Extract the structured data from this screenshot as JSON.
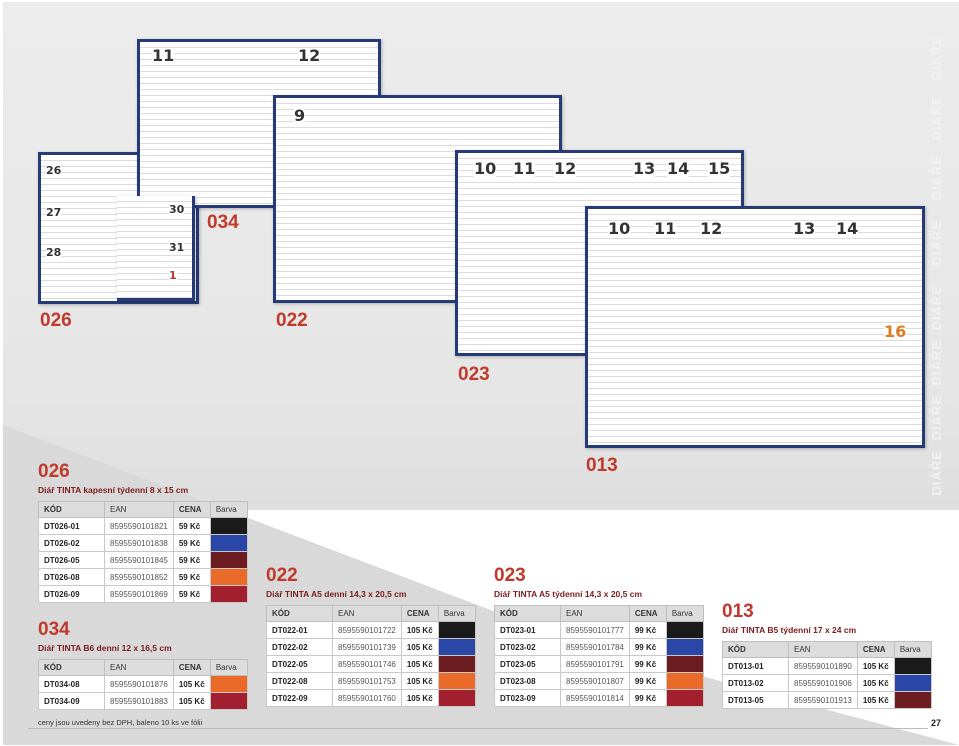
{
  "watermark": "DIÁŘE",
  "watermark_repeat": [
    "DIÁŘE",
    "DIÁŘE",
    "DIÁŘE",
    "DIÁŘE",
    "DIÁŘE",
    "DIÁŘE",
    "DIÁŘE",
    "DIÁŘE"
  ],
  "image_codes": [
    "034",
    "026",
    "022",
    "023",
    "013"
  ],
  "books": {
    "b034": {
      "left": "11",
      "right": "12",
      "d1": "30",
      "d2": "31",
      "d3": "1"
    },
    "b026": {
      "d1": "26",
      "d2": "27",
      "d3": "28"
    },
    "b022": {
      "left": "9"
    },
    "b023": {
      "a": "10",
      "b": "11",
      "c": "12",
      "d": "13",
      "e": "14",
      "f": "15"
    },
    "b013": {
      "a": "10",
      "b": "11",
      "c": "12",
      "d": "13",
      "e": "14",
      "f": "16"
    }
  },
  "tables": {
    "t026": {
      "code": "026",
      "title": "Diář TINTA  kapesní týdenní 8 x 15 cm",
      "headers": {
        "kod": "KÓD",
        "ean": "EAN",
        "cena": "CENA",
        "barva": "Barva"
      },
      "rows": [
        {
          "kod": "DT026-01",
          "ean": "8595590101821",
          "cena": "59 Kč",
          "color": "#1a1a1a"
        },
        {
          "kod": "DT026-02",
          "ean": "8595590101838",
          "cena": "59 Kč",
          "color": "#2a47a8"
        },
        {
          "kod": "DT026-05",
          "ean": "8595590101845",
          "cena": "59 Kč",
          "color": "#6b1d22"
        },
        {
          "kod": "DT026-08",
          "ean": "8595590101852",
          "cena": "59 Kč",
          "color": "#ea6a2a"
        },
        {
          "kod": "DT026-09",
          "ean": "8595590101869",
          "cena": "59 Kč",
          "color": "#a11f2e"
        }
      ]
    },
    "t034": {
      "code": "034",
      "title": "Diář TINTA B6 denní 12 x 16,5 cm",
      "headers": {
        "kod": "KÓD",
        "ean": "EAN",
        "cena": "CENA",
        "barva": "Barva"
      },
      "rows": [
        {
          "kod": "DT034-08",
          "ean": "8595590101876",
          "cena": "105 Kč",
          "color": "#ea6a2a"
        },
        {
          "kod": "DT034-09",
          "ean": "8595590101883",
          "cena": "105 Kč",
          "color": "#a11f2e"
        }
      ]
    },
    "t022": {
      "code": "022",
      "title": "Diář TINTA A5 denní 14,3 x 20,5 cm",
      "headers": {
        "kod": "KÓD",
        "ean": "EAN",
        "cena": "CENA",
        "barva": "Barva"
      },
      "rows": [
        {
          "kod": "DT022-01",
          "ean": "8595590101722",
          "cena": "105 Kč",
          "color": "#1a1a1a"
        },
        {
          "kod": "DT022-02",
          "ean": "8595590101739",
          "cena": "105 Kč",
          "color": "#2a47a8"
        },
        {
          "kod": "DT022-05",
          "ean": "8595590101746",
          "cena": "105 Kč",
          "color": "#6b1d22"
        },
        {
          "kod": "DT022-08",
          "ean": "8595590101753",
          "cena": "105 Kč",
          "color": "#ea6a2a"
        },
        {
          "kod": "DT022-09",
          "ean": "8595590101760",
          "cena": "105 Kč",
          "color": "#a11f2e"
        }
      ]
    },
    "t023": {
      "code": "023",
      "title": "Diář TINTA A5 týdenní 14,3 x 20,5 cm",
      "headers": {
        "kod": "KÓD",
        "ean": "EAN",
        "cena": "CENA",
        "barva": "Barva"
      },
      "rows": [
        {
          "kod": "DT023-01",
          "ean": "8595590101777",
          "cena": "99 Kč",
          "color": "#1a1a1a"
        },
        {
          "kod": "DT023-02",
          "ean": "8595590101784",
          "cena": "99 Kč",
          "color": "#2a47a8"
        },
        {
          "kod": "DT023-05",
          "ean": "8595590101791",
          "cena": "99 Kč",
          "color": "#6b1d22"
        },
        {
          "kod": "DT023-08",
          "ean": "8595590101807",
          "cena": "99 Kč",
          "color": "#ea6a2a"
        },
        {
          "kod": "DT023-09",
          "ean": "8595590101814",
          "cena": "99 Kč",
          "color": "#a11f2e"
        }
      ]
    },
    "t013": {
      "code": "013",
      "title": "Diář TINTA B5 týdenní 17 x 24 cm",
      "headers": {
        "kod": "KÓD",
        "ean": "EAN",
        "cena": "CENA",
        "barva": "Barva"
      },
      "rows": [
        {
          "kod": "DT013-01",
          "ean": "8595590101890",
          "cena": "105 Kč",
          "color": "#1a1a1a"
        },
        {
          "kod": "DT013-02",
          "ean": "8595590101906",
          "cena": "105 Kč",
          "color": "#2a47a8"
        },
        {
          "kod": "DT013-05",
          "ean": "8595590101913",
          "cena": "105 Kč",
          "color": "#6b1d22"
        }
      ]
    }
  },
  "footer": "ceny jsou uvedeny bez DPH, baleno 10 ks ve fólii",
  "page_number": "27"
}
